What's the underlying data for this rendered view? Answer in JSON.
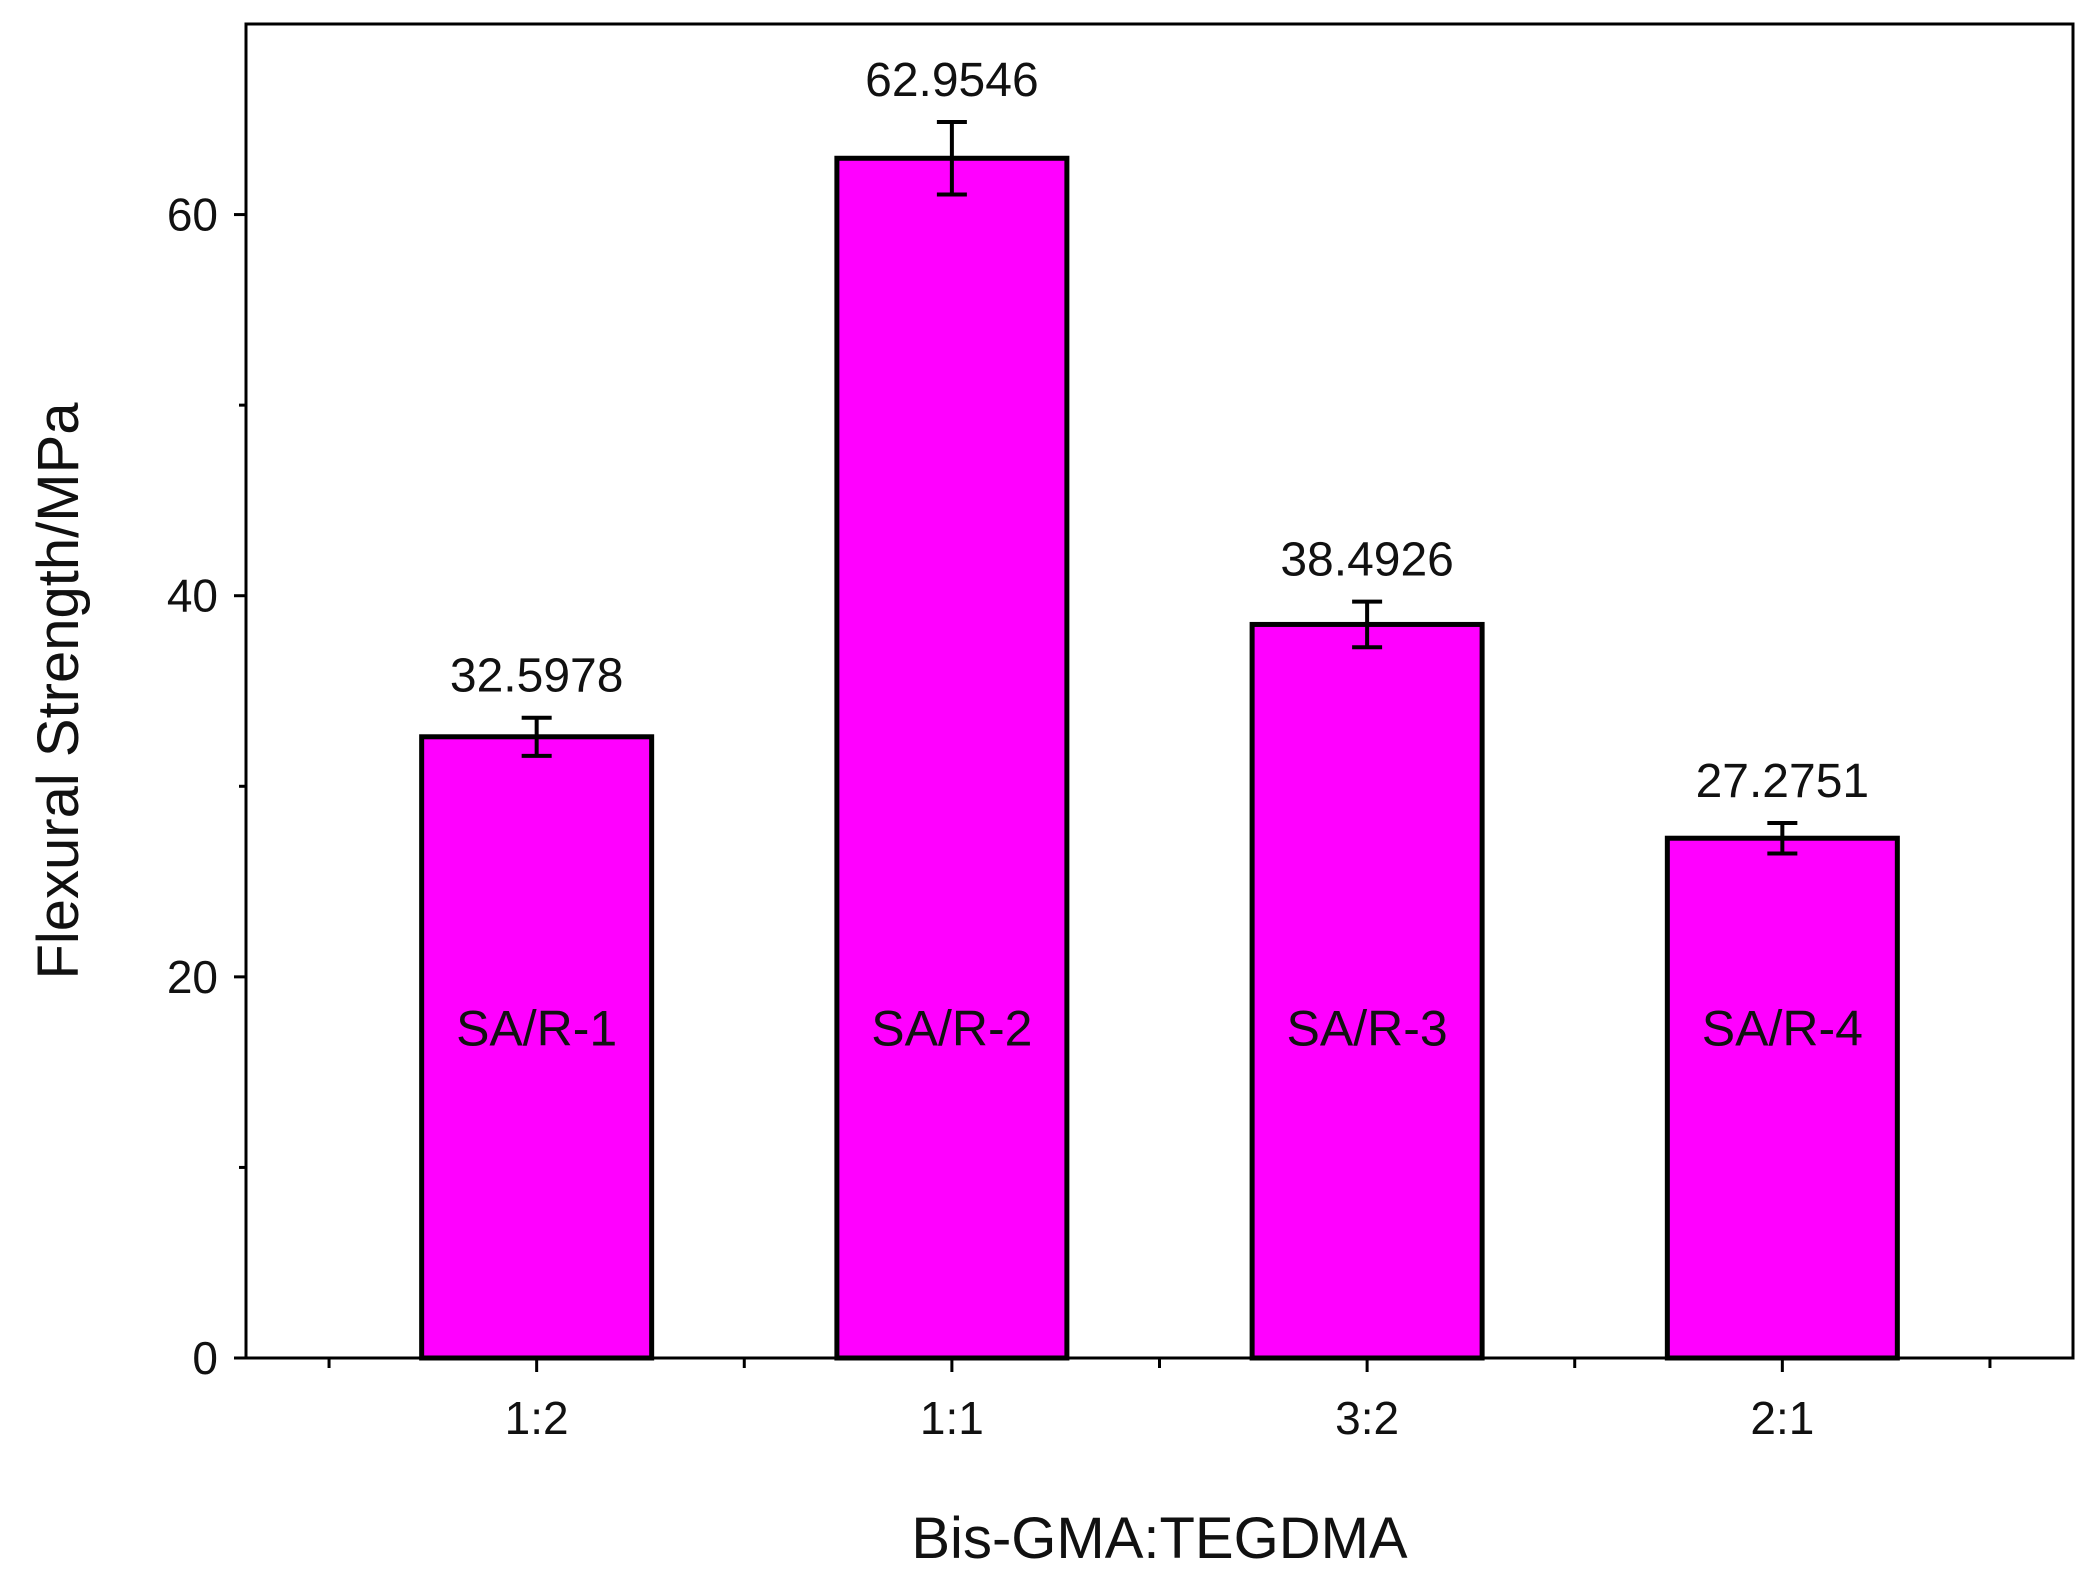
{
  "chart_data": {
    "type": "bar",
    "title": "",
    "xlabel": "Bis-GMA:TEGDMA",
    "ylabel": "Flexural Strength/MPa",
    "categories": [
      "1:2",
      "1:1",
      "3:2",
      "2:1"
    ],
    "bar_labels": [
      "SA/R-1",
      "SA/R-2",
      "SA/R-3",
      "SA/R-4"
    ],
    "values": [
      32.5978,
      62.9546,
      38.4926,
      27.2751
    ],
    "value_labels": [
      "32.5978",
      "62.9546",
      "38.4926",
      "27.2751"
    ],
    "error": [
      1.0,
      1.9,
      1.2,
      0.8
    ],
    "ylim": [
      0,
      70
    ],
    "yticks": [
      0,
      20,
      40,
      60
    ],
    "yticks_labels": [
      "0",
      "20",
      "40",
      "60"
    ],
    "bar_color": "#ff00ff",
    "grid": false,
    "legend": "none"
  }
}
